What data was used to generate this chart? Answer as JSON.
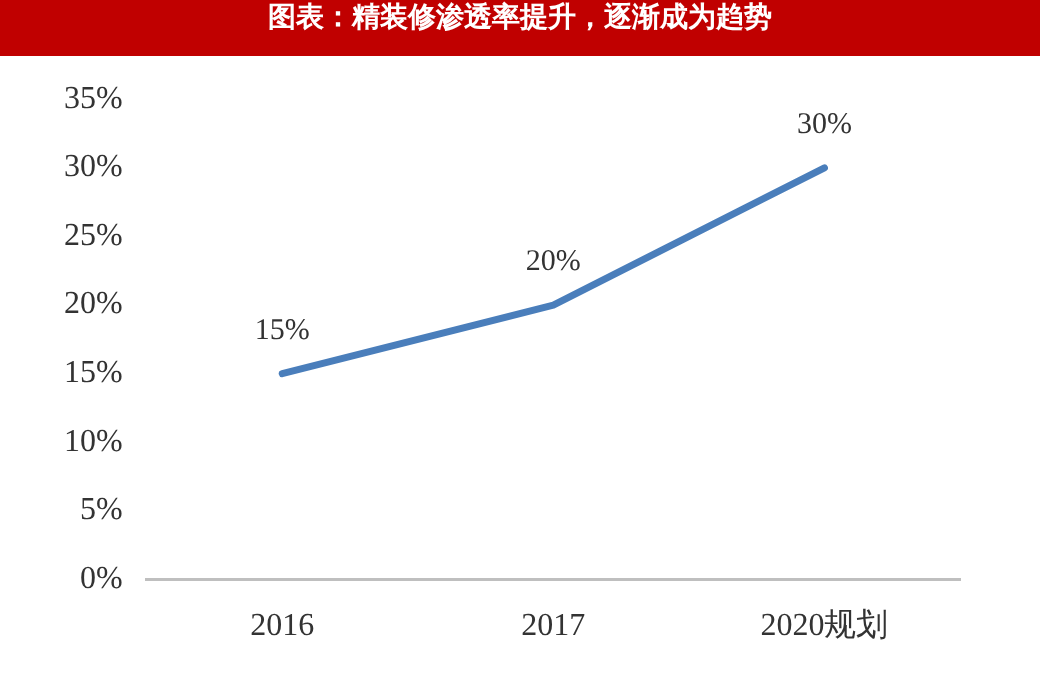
{
  "chart_data": {
    "type": "line",
    "title": "图表：精装修渗透率提升，逐渐成为趋势",
    "categories": [
      "2016",
      "2017",
      "2020规划"
    ],
    "series": [
      {
        "color": "#4a7ebb",
        "values": [
          15,
          20,
          30
        ],
        "value_labels": [
          "15%",
          "20%",
          "30%"
        ]
      }
    ],
    "ylim": [
      0,
      35
    ],
    "yticks": [
      {
        "value": 0,
        "label": "0%"
      },
      {
        "value": 5,
        "label": "5%"
      },
      {
        "value": 10,
        "label": "10%"
      },
      {
        "value": 15,
        "label": "15%"
      },
      {
        "value": 20,
        "label": "20%"
      },
      {
        "value": 25,
        "label": "25%"
      },
      {
        "value": 30,
        "label": "30%"
      },
      {
        "value": 35,
        "label": "35%"
      }
    ],
    "grid": false,
    "legend": false,
    "marker": "none",
    "line_style": "solid"
  }
}
